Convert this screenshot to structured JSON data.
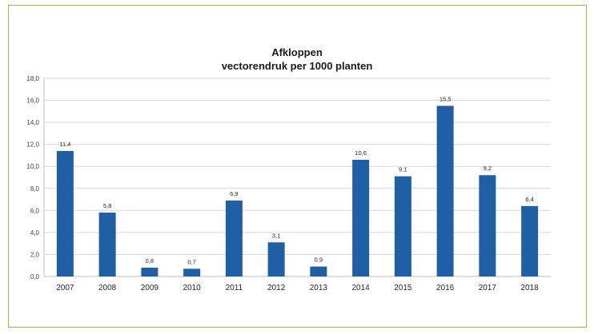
{
  "chart_data": {
    "type": "bar",
    "title": "Afkloppen",
    "subtitle": "vectorendruk per 1000 planten",
    "xlabel": "",
    "ylabel": "",
    "categories": [
      "2007",
      "2008",
      "2009",
      "2010",
      "2011",
      "2012",
      "2013",
      "2014",
      "2015",
      "2016",
      "2017",
      "2018"
    ],
    "values": [
      11.4,
      5.8,
      0.8,
      0.7,
      6.9,
      3.1,
      0.9,
      10.6,
      9.1,
      15.5,
      9.2,
      6.4
    ],
    "value_labels": [
      "11,4",
      "5,8",
      "0,8",
      "0,7",
      "6,9",
      "3,1",
      "0,9",
      "10,6",
      "9,1",
      "15,5",
      "9,2",
      "6,4"
    ],
    "yticks": [
      "0,0",
      "2,0",
      "4,0",
      "6,0",
      "8,0",
      "10,0",
      "12,0",
      "14,0",
      "16,0",
      "18,0"
    ],
    "ylim": [
      0,
      18
    ],
    "grid": true,
    "legend": "none",
    "bar_color": "#1f5fa6",
    "grid_color": "#d9d9d9",
    "frame_color": "#8cc63f"
  }
}
